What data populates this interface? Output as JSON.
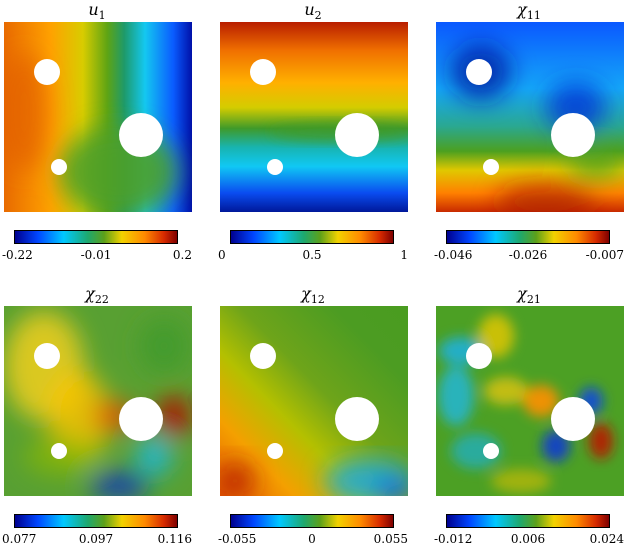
{
  "panels": [
    {
      "title_main": "u",
      "title_sub": "1",
      "ticks": [
        "-0.22",
        "-0.01",
        "0.2"
      ]
    },
    {
      "title_main": "u",
      "title_sub": "2",
      "ticks": [
        "0",
        "0.5",
        "1"
      ]
    },
    {
      "title_main": "χ",
      "title_sub": "11",
      "ticks": [
        "-0.046",
        "-0.026",
        "-0.007"
      ]
    },
    {
      "title_main": "χ",
      "title_sub": "22",
      "ticks": [
        "0.077",
        "0.097",
        "0.116"
      ]
    },
    {
      "title_main": "χ",
      "title_sub": "12",
      "ticks": [
        "-0.055",
        "0",
        "0.055"
      ]
    },
    {
      "title_main": "χ",
      "title_sub": "21",
      "ticks": [
        "-0.012",
        "0.006",
        "0.024"
      ]
    }
  ],
  "colors": {
    "dark_blue": "#00008f",
    "blue": "#0046ff",
    "cyan": "#00c8ff",
    "green": "#3f9a2a",
    "yellow": "#f2d200",
    "orange": "#ff8a00",
    "dark_red": "#7f0000"
  }
}
